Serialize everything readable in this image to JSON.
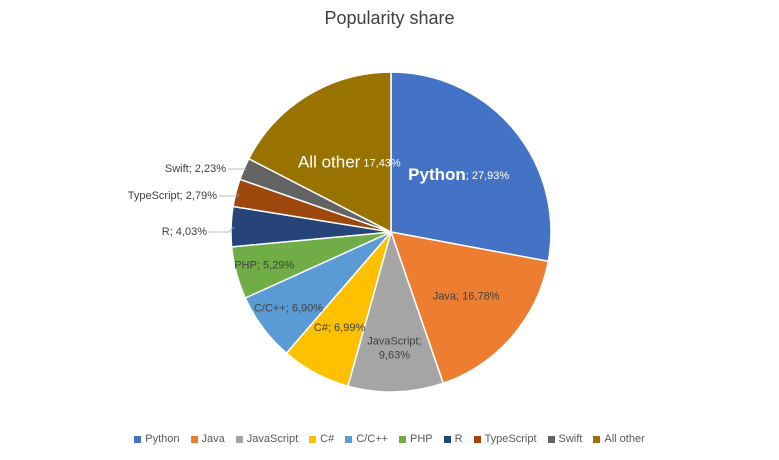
{
  "chart_data": {
    "type": "pie",
    "title": "Popularity share",
    "series": [
      {
        "name": "Python",
        "value": 27.93,
        "label": "27,93%",
        "color": "#4472C4"
      },
      {
        "name": "Java",
        "value": 16.78,
        "label": "16,78%",
        "color": "#ED7D31"
      },
      {
        "name": "JavaScript",
        "value": 9.63,
        "label": "9,63%",
        "color": "#A5A5A5"
      },
      {
        "name": "C#",
        "value": 6.99,
        "label": "6,99%",
        "color": "#FFC000"
      },
      {
        "name": "C/C++",
        "value": 6.9,
        "label": "6,90%",
        "color": "#5B9BD5"
      },
      {
        "name": "PHP",
        "value": 5.29,
        "label": "5,29%",
        "color": "#70AD47"
      },
      {
        "name": "R",
        "value": 4.03,
        "label": "4,03%",
        "color": "#264478"
      },
      {
        "name": "TypeScript",
        "value": 2.79,
        "label": "2,79%",
        "color": "#9E480E"
      },
      {
        "name": "Swift",
        "value": 2.23,
        "label": "2,23%",
        "color": "#636363"
      },
      {
        "name": "All other",
        "value": 17.43,
        "label": "17,43%",
        "color": "#997300"
      }
    ],
    "legend_position": "bottom"
  }
}
